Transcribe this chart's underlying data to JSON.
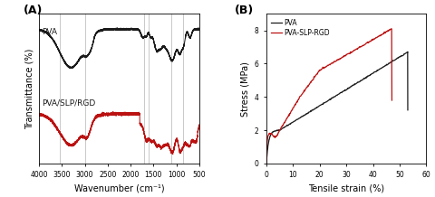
{
  "panel_A_label": "(A)",
  "panel_B_label": "(B)",
  "ftir_xlabel": "Wavenumber (cm⁻¹)",
  "ftir_ylabel": "Transmittance (%)",
  "stress_xlabel": "Tensile strain (%)",
  "stress_ylabel": "Stress (MPa)",
  "ftir_xlim": [
    4000,
    500
  ],
  "stress_xlim": [
    0,
    60
  ],
  "stress_ylim": [
    0,
    9
  ],
  "stress_yticks": [
    0,
    2,
    4,
    6,
    8
  ],
  "stress_xticks": [
    0,
    10,
    20,
    30,
    40,
    50,
    60
  ],
  "ftir_xticks": [
    4000,
    3500,
    3000,
    2500,
    2000,
    1500,
    1000,
    500
  ],
  "vertical_lines": [
    3550,
    3000,
    1700,
    1600,
    1100,
    850
  ],
  "pva_label": "PVA",
  "slp_label": "PVA/SLP/RGD",
  "legend_pva": "PVA",
  "legend_slp": "PVA-SLP-RGD",
  "color_black": "#1a1a1a",
  "color_red": "#bb1111",
  "color_vline": "#b0b0b0",
  "bg_color": "#ffffff"
}
